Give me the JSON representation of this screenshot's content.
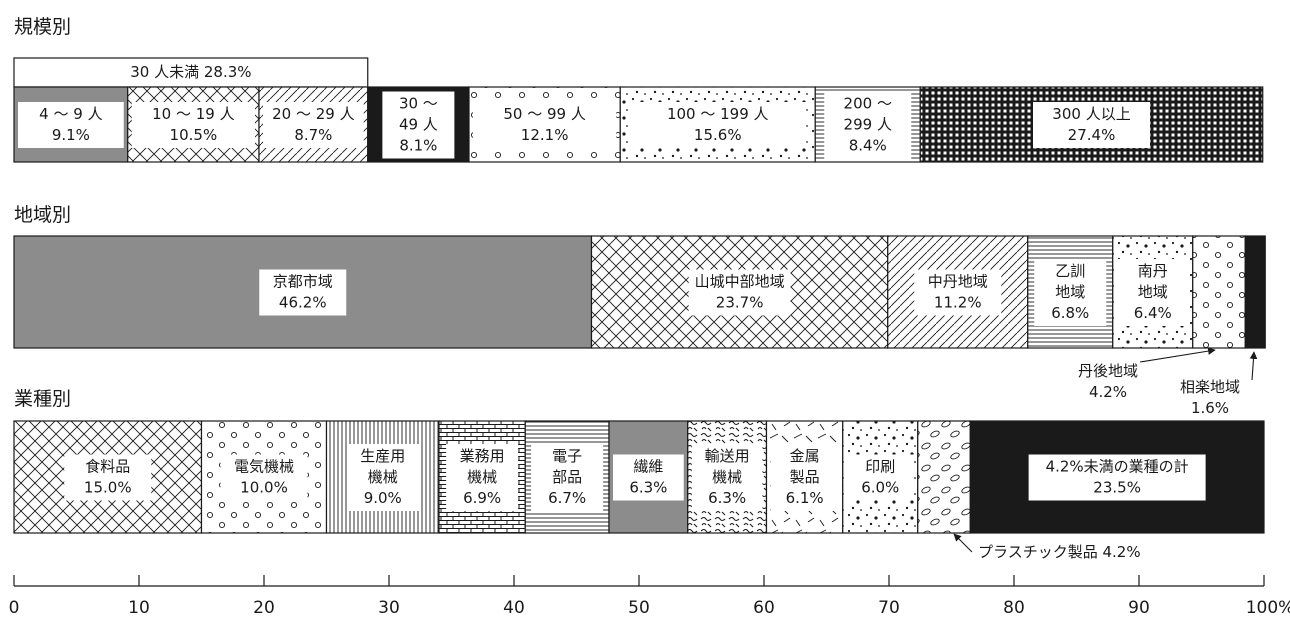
{
  "colors": {
    "ink": "#1a1a1a",
    "gray": "#8c8c8c",
    "black": "#1a1a1a",
    "white": "#ffffff"
  },
  "chart_data": [
    {
      "type": "stacked-bar-100",
      "title": "規模別",
      "subtotal": {
        "label": "30 人未満 28.3%",
        "value": 28.3
      },
      "segments": [
        {
          "label": "4 〜 9 人",
          "value": 9.1,
          "value_text": "9.1%",
          "pattern": "gray"
        },
        {
          "label": "10 〜 19 人",
          "value": 10.5,
          "value_text": "10.5%",
          "pattern": "crosshatch"
        },
        {
          "label": "20 〜 29 人",
          "value": 8.7,
          "value_text": "8.7%",
          "pattern": "diagonal"
        },
        {
          "label": "30 〜\n49 人",
          "value": 8.1,
          "value_text": "8.1%",
          "pattern": "black"
        },
        {
          "label": "50 〜 99 人",
          "value": 12.1,
          "value_text": "12.1%",
          "pattern": "circles"
        },
        {
          "label": "100 〜 199 人",
          "value": 15.6,
          "value_text": "15.6%",
          "pattern": "dots"
        },
        {
          "label": "200 〜\n299 人",
          "value": 8.4,
          "value_text": "8.4%",
          "pattern": "hlines"
        },
        {
          "label": "300 人以上",
          "value": 27.4,
          "value_text": "27.4%",
          "pattern": "grid"
        }
      ]
    },
    {
      "type": "stacked-bar-100",
      "title": "地域別",
      "segments": [
        {
          "label": "京都市域",
          "value": 46.2,
          "value_text": "46.2%",
          "pattern": "gray"
        },
        {
          "label": "山城中部地域",
          "value": 23.7,
          "value_text": "23.7%",
          "pattern": "crosshatch"
        },
        {
          "label": "中丹地域",
          "value": 11.2,
          "value_text": "11.2%",
          "pattern": "diagonal"
        },
        {
          "label": "乙訓\n地域",
          "value": 6.8,
          "value_text": "6.8%",
          "pattern": "hlines"
        },
        {
          "label": "南丹\n地域",
          "value": 6.4,
          "value_text": "6.4%",
          "pattern": "dots"
        },
        {
          "label": "丹後地域",
          "value": 4.2,
          "value_text": "4.2%",
          "pattern": "circles"
        },
        {
          "label": "相楽地域",
          "value": 1.6,
          "value_text": "1.6%",
          "pattern": "black"
        }
      ],
      "callouts": [
        "丹後地域\n4.2%",
        "相楽地域\n1.6%"
      ]
    },
    {
      "type": "stacked-bar-100",
      "title": "業種別",
      "segments": [
        {
          "label": "食料品",
          "value": 15.0,
          "value_text": "15.0%",
          "pattern": "crosshatch"
        },
        {
          "label": "電気機械",
          "value": 10.0,
          "value_text": "10.0%",
          "pattern": "circles"
        },
        {
          "label": "生産用\n機械",
          "value": 9.0,
          "value_text": "9.0%",
          "pattern": "vlines"
        },
        {
          "label": "業務用\n機械",
          "value": 6.9,
          "value_text": "6.9%",
          "pattern": "brick"
        },
        {
          "label": "電子\n部品",
          "value": 6.7,
          "value_text": "6.7%",
          "pattern": "hlines"
        },
        {
          "label": "繊維",
          "value": 6.3,
          "value_text": "6.3%",
          "pattern": "gray"
        },
        {
          "label": "輸送用\n機械",
          "value": 6.3,
          "value_text": "6.3%",
          "pattern": "squiggle"
        },
        {
          "label": "金属\n製品",
          "value": 6.1,
          "value_text": "6.1%",
          "pattern": "lines-random"
        },
        {
          "label": "印刷",
          "value": 6.0,
          "value_text": "6.0%",
          "pattern": "dots"
        },
        {
          "label": "プラスチック製品",
          "value": 4.2,
          "value_text": "4.2%",
          "pattern": "ovals"
        },
        {
          "label": "4.2%未満の業種の計",
          "value": 23.5,
          "value_text": "23.5%",
          "pattern": "black"
        }
      ],
      "callouts": [
        "プラスチック製品 4.2%"
      ]
    }
  ],
  "axis": {
    "ticks": [
      0,
      10,
      20,
      30,
      40,
      50,
      60,
      70,
      80,
      90,
      100
    ],
    "tick_labels": [
      "0",
      "10",
      "20",
      "30",
      "40",
      "50",
      "60",
      "70",
      "80",
      "90",
      "100%"
    ],
    "range": [
      0,
      100
    ]
  }
}
